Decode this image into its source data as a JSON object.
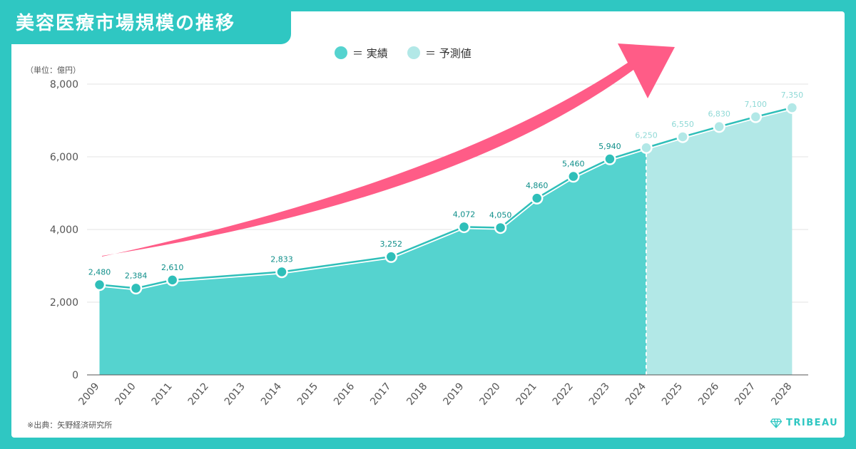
{
  "title": "美容医療市場規模の推移",
  "source": "※出典：矢野経済研究所",
  "brand": "TRIBEAU",
  "unit_label": "（単位：億円）",
  "legend": {
    "actual": "＝ 実績",
    "forecast": "＝ 予測値"
  },
  "colors": {
    "background": "#2fc7c2",
    "actual_fill": "#55d3cf",
    "forecast_fill": "#b2e8e7",
    "line": "#2fbfb9",
    "actual_label": "#0f8f8a",
    "forecast_label": "#8fd9d6",
    "arrow": "#ff5c87"
  },
  "chart_data": {
    "type": "area",
    "title": "美容医療市場規模の推移",
    "ylabel": "（単位：億円）",
    "ylim": [
      0,
      8000
    ],
    "y_ticks": [
      "0",
      "2,000",
      "4,000",
      "6,000",
      "8,000"
    ],
    "y_tick_values": [
      0,
      2000,
      4000,
      6000,
      8000
    ],
    "grid": true,
    "legend_position": "top-center",
    "x_categories": [
      "2009",
      "2010",
      "2011",
      "2012",
      "2013",
      "2014",
      "2015",
      "2016",
      "2017",
      "2018",
      "2019",
      "2020",
      "2021",
      "2022",
      "2023",
      "2024",
      "2025",
      "2026",
      "2027",
      "2028"
    ],
    "series": [
      {
        "name": "実績",
        "points": [
          {
            "x": "2009",
            "y": 2480,
            "label": "2,480"
          },
          {
            "x": "2010",
            "y": 2384,
            "label": "2,384"
          },
          {
            "x": "2011",
            "y": 2610,
            "label": "2,610"
          },
          {
            "x": "2014",
            "y": 2833,
            "label": "2,833"
          },
          {
            "x": "2017",
            "y": 3252,
            "label": "3,252"
          },
          {
            "x": "2019",
            "y": 4072,
            "label": "4,072"
          },
          {
            "x": "2020",
            "y": 4050,
            "label": "4,050"
          },
          {
            "x": "2021",
            "y": 4860,
            "label": "4,860"
          },
          {
            "x": "2022",
            "y": 5460,
            "label": "5,460"
          },
          {
            "x": "2023",
            "y": 5940,
            "label": "5,940"
          }
        ]
      },
      {
        "name": "予測値",
        "points": [
          {
            "x": "2024",
            "y": 6250,
            "label": "6,250"
          },
          {
            "x": "2025",
            "y": 6550,
            "label": "6,550"
          },
          {
            "x": "2026",
            "y": 6830,
            "label": "6,830"
          },
          {
            "x": "2027",
            "y": 7100,
            "label": "7,100"
          },
          {
            "x": "2028",
            "y": 7350,
            "label": "7,350"
          }
        ]
      }
    ]
  }
}
